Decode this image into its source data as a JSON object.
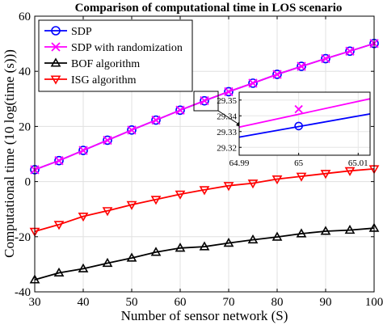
{
  "chart_data": {
    "type": "line",
    "title": "Comparison of computational time in LOS scenario",
    "xlabel": "Number of sensor network (S)",
    "ylabel": "Computational time (10 log(time (s)))",
    "xlim": [
      30,
      100
    ],
    "ylim": [
      -40,
      60
    ],
    "xticks": [
      30,
      40,
      50,
      60,
      70,
      80,
      90,
      100
    ],
    "yticks": [
      -40,
      -20,
      0,
      20,
      40,
      60
    ],
    "grid": true,
    "legend_position": "top-left",
    "x": [
      30,
      35,
      40,
      45,
      50,
      55,
      60,
      65,
      70,
      75,
      80,
      85,
      90,
      95,
      100
    ],
    "series": [
      {
        "name": "SDP",
        "color": "#0000ff",
        "marker": "circle",
        "values": [
          4.3,
          7.6,
          11.3,
          15.0,
          18.7,
          22.3,
          25.9,
          29.3,
          32.6,
          35.7,
          38.9,
          41.8,
          44.6,
          47.3,
          50.1
        ]
      },
      {
        "name": "SDP with randomization",
        "color": "#ff00ff",
        "marker": "x",
        "values": [
          4.3,
          7.6,
          11.3,
          15.0,
          18.7,
          22.3,
          25.9,
          29.34,
          32.6,
          35.7,
          38.9,
          41.8,
          44.6,
          47.3,
          50.1
        ]
      },
      {
        "name": "BOF algorithm",
        "color": "#000000",
        "marker": "triangle-up",
        "values": [
          -35.6,
          -33.1,
          -31.6,
          -29.6,
          -27.7,
          -25.6,
          -24.1,
          -23.6,
          -22.3,
          -21.1,
          -20.1,
          -18.9,
          -18.0,
          -17.6,
          -16.9
        ]
      },
      {
        "name": "ISG algorithm",
        "color": "#ff0000",
        "marker": "triangle-down",
        "values": [
          -18.1,
          -15.6,
          -12.6,
          -10.6,
          -8.4,
          -6.5,
          -4.6,
          -3.0,
          -1.5,
          -0.6,
          0.9,
          1.9,
          2.9,
          3.9,
          4.6
        ]
      }
    ],
    "inset": {
      "xlim": [
        64.99,
        65.012
      ],
      "ylim": [
        29.315,
        29.355
      ],
      "xticks": [
        "64.99",
        "65",
        "65.01"
      ],
      "yticks": [
        "29.32",
        "29.33",
        "29.34",
        "29.35"
      ],
      "sdp_line": [
        [
          64.99,
          29.3265
        ],
        [
          65.012,
          29.3412
        ]
      ],
      "sdp_marker": [
        65,
        29.3335
      ],
      "rand_line": [
        [
          64.99,
          29.3328
        ],
        [
          65.012,
          29.3508
        ]
      ],
      "rand_marker": [
        65,
        29.3442
      ]
    }
  }
}
